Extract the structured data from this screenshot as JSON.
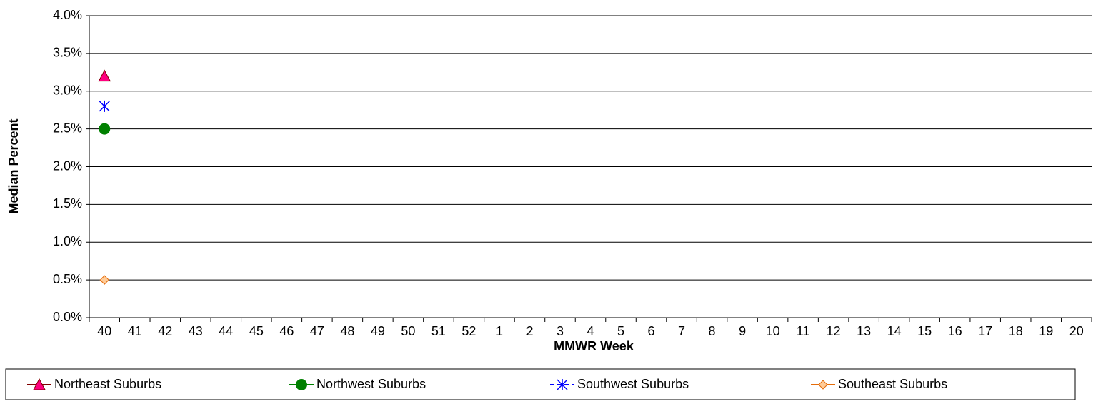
{
  "chart_data": {
    "type": "line",
    "x_label": "MMWR Week",
    "y_label": "Median Percent",
    "categories": [
      "40",
      "41",
      "42",
      "43",
      "44",
      "45",
      "46",
      "47",
      "48",
      "49",
      "50",
      "51",
      "52",
      "1",
      "2",
      "3",
      "4",
      "5",
      "6",
      "7",
      "8",
      "9",
      "10",
      "11",
      "12",
      "13",
      "14",
      "15",
      "16",
      "17",
      "18",
      "19",
      "20"
    ],
    "series": [
      {
        "name": "Northeast Suburbs",
        "color": "#800000",
        "fill": "#ff0080",
        "marker": "triangle",
        "values": [
          3.2,
          null,
          null,
          null,
          null,
          null,
          null,
          null,
          null,
          null,
          null,
          null,
          null,
          null,
          null,
          null,
          null,
          null,
          null,
          null,
          null,
          null,
          null,
          null,
          null,
          null,
          null,
          null,
          null,
          null,
          null,
          null,
          null
        ]
      },
      {
        "name": "Northwest Suburbs",
        "color": "#008000",
        "fill": "#008000",
        "marker": "circle",
        "values": [
          2.5,
          null,
          null,
          null,
          null,
          null,
          null,
          null,
          null,
          null,
          null,
          null,
          null,
          null,
          null,
          null,
          null,
          null,
          null,
          null,
          null,
          null,
          null,
          null,
          null,
          null,
          null,
          null,
          null,
          null,
          null,
          null,
          null
        ]
      },
      {
        "name": "Southwest Suburbs",
        "color": "#0000ff",
        "fill": "#0000ff",
        "marker": "asterisk",
        "dash": true,
        "values": [
          2.8,
          null,
          null,
          null,
          null,
          null,
          null,
          null,
          null,
          null,
          null,
          null,
          null,
          null,
          null,
          null,
          null,
          null,
          null,
          null,
          null,
          null,
          null,
          null,
          null,
          null,
          null,
          null,
          null,
          null,
          null,
          null,
          null
        ]
      },
      {
        "name": "Southeast Suburbs",
        "color": "#e46c0a",
        "fill": "#ffcc99",
        "marker": "diamond",
        "values": [
          0.5,
          null,
          null,
          null,
          null,
          null,
          null,
          null,
          null,
          null,
          null,
          null,
          null,
          null,
          null,
          null,
          null,
          null,
          null,
          null,
          null,
          null,
          null,
          null,
          null,
          null,
          null,
          null,
          null,
          null,
          null,
          null,
          null
        ]
      }
    ],
    "ylim": [
      0,
      4
    ],
    "yticks": [
      {
        "value": 0,
        "label": "0.0%"
      },
      {
        "value": 0.5,
        "label": "0.5%"
      },
      {
        "value": 1,
        "label": "1.0%"
      },
      {
        "value": 1.5,
        "label": "1.5%"
      },
      {
        "value": 2,
        "label": "2.0%"
      },
      {
        "value": 2.5,
        "label": "2.5%"
      },
      {
        "value": 3,
        "label": "3.0%"
      },
      {
        "value": 3.5,
        "label": "3.5%"
      },
      {
        "value": 4,
        "label": "4.0%"
      }
    ],
    "grid": true,
    "legend": "bottom"
  }
}
